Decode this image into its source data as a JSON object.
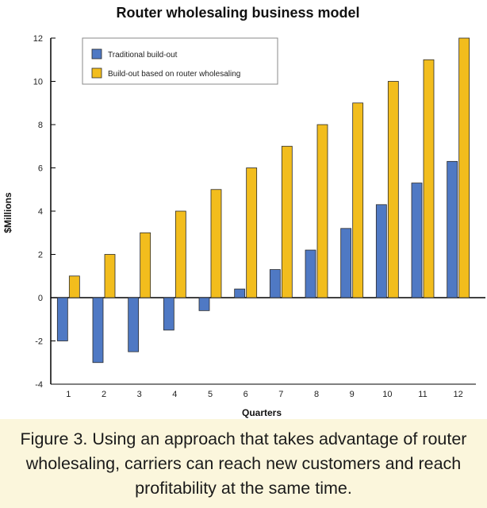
{
  "chart_data": {
    "type": "bar",
    "title": "Router wholesaling business model",
    "xlabel": "Quarters",
    "ylabel": "$Millions",
    "categories": [
      "1",
      "2",
      "3",
      "4",
      "5",
      "6",
      "7",
      "8",
      "9",
      "10",
      "11",
      "12"
    ],
    "series": [
      {
        "name": "Traditional build-out",
        "color": "#4f79c4",
        "values": [
          -2,
          -3,
          -2.5,
          -1.5,
          -0.6,
          0.4,
          1.3,
          2.2,
          3.2,
          4.3,
          5.3,
          6.3
        ]
      },
      {
        "name": "Build-out based on router wholesaling",
        "color": "#f2bd1d",
        "values": [
          1,
          2,
          3,
          4,
          5,
          6,
          7,
          8,
          9,
          10,
          11,
          12
        ]
      }
    ],
    "ylim": [
      -4,
      12
    ],
    "yticks": [
      "-4",
      "-2",
      "0",
      "2",
      "4",
      "6",
      "8",
      "10",
      "12"
    ],
    "legend": "top-left",
    "grid": false
  },
  "caption": "Figure 3. Using an approach that takes advantage of router wholesaling, carriers can reach new customers and reach profitability at the same time."
}
